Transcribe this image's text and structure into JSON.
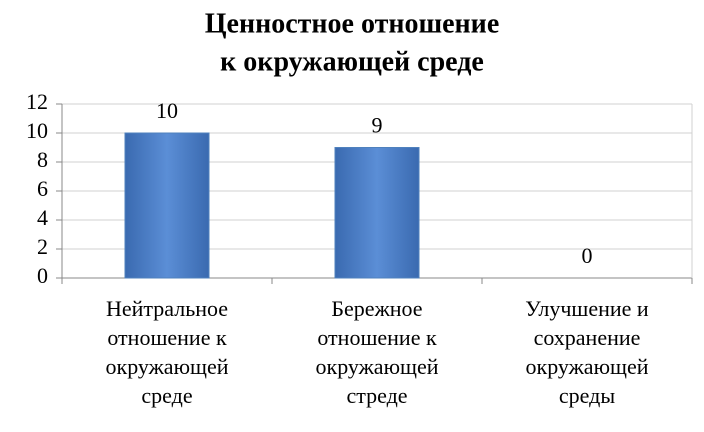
{
  "chart_data": {
    "type": "bar",
    "title": [
      "Ценностное отношение",
      "к окружающей среде"
    ],
    "categories": [
      "Нейтральное отношение к окружающей среде",
      "Бережное отношение к окружающей стреде",
      "Улучшение и сохранение окружающей среды"
    ],
    "values": [
      10,
      9,
      0
    ],
    "color": "#4f81bd",
    "ylim": [
      0,
      12
    ],
    "yticks": [
      0,
      2,
      4,
      6,
      8,
      10,
      12
    ],
    "grid": true
  }
}
